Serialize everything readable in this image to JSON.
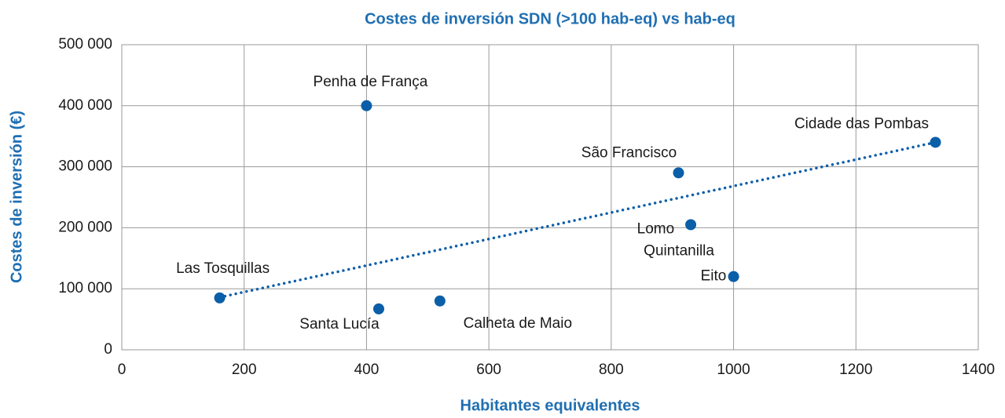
{
  "chart_data": {
    "type": "scatter",
    "title": "Costes de inversión SDN (>100 hab-eq) vs hab-eq",
    "xlabel": "Habitantes equivalentes",
    "ylabel": "Costes de inversión (€)",
    "series": [
      {
        "color": "#0b5ea8",
        "labels": [
          "Las Tosquillas",
          "Santa Lucía",
          "Calheta de Maio",
          "Penha de França",
          "São Francisco",
          "Lomo Quintanilla",
          "Eito",
          "Cidade das Pombas"
        ],
        "x": [
          160,
          420,
          520,
          400,
          910,
          930,
          1000,
          1330
        ],
        "values": [
          85000,
          67000,
          80000,
          400000,
          290000,
          205000,
          120000,
          340000
        ]
      }
    ],
    "trendline": {
      "color": "#0b5ea8",
      "x": [
        160,
        1330
      ],
      "values": [
        86000,
        340000
      ]
    },
    "xlim": [
      0,
      1400
    ],
    "xticks": [
      0,
      200,
      400,
      600,
      800,
      1000,
      1200,
      1400
    ],
    "ylim": [
      0,
      500000
    ],
    "yticks": [
      0,
      {
        "value": 100000,
        "label": "100 000"
      },
      {
        "value": 200000,
        "label": "200 000"
      },
      {
        "value": 300000,
        "label": "300 000"
      },
      {
        "value": 400000,
        "label": "400 000"
      },
      {
        "value": 500000,
        "label": "500 000"
      }
    ],
    "grid": true
  }
}
